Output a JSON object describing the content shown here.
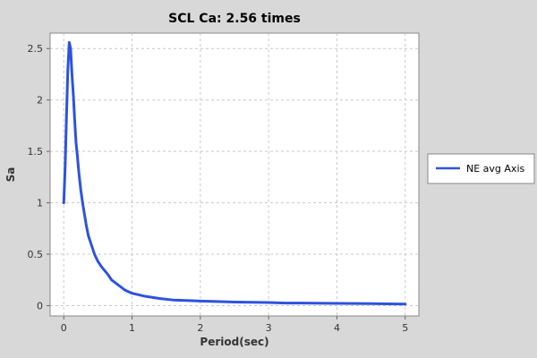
{
  "chart_data": {
    "type": "line",
    "title": "SCL Ca: 2.56 times",
    "xlabel": "Period(sec)",
    "ylabel": "Sa",
    "xlim": [
      -0.2,
      5.2
    ],
    "ylim": [
      -0.1,
      2.65
    ],
    "x_ticks": [
      0,
      1,
      2,
      3,
      4,
      5
    ],
    "y_ticks": [
      0,
      0.5,
      1,
      1.5,
      2,
      2.5
    ],
    "x_tick_labels": [
      "0",
      "1",
      "2",
      "3",
      "4",
      "5"
    ],
    "y_tick_labels": [
      "0",
      "0.5",
      "1",
      "1.5",
      "2",
      "2.5"
    ],
    "grid": true,
    "legend_position": "right",
    "series": [
      {
        "name": "NE avg Axis",
        "color": "#2d52e0",
        "x": [
          0.0,
          0.02,
          0.04,
          0.06,
          0.08,
          0.1,
          0.12,
          0.14,
          0.16,
          0.18,
          0.2,
          0.22,
          0.25,
          0.28,
          0.3,
          0.33,
          0.36,
          0.4,
          0.45,
          0.5,
          0.55,
          0.6,
          0.65,
          0.7,
          0.8,
          0.9,
          1.0,
          1.2,
          1.4,
          1.6,
          1.8,
          2.0,
          2.5,
          3.0,
          3.25,
          3.5,
          4.0,
          4.5,
          5.0
        ],
        "y": [
          1.0,
          1.35,
          1.85,
          2.3,
          2.56,
          2.5,
          2.25,
          2.05,
          1.8,
          1.58,
          1.45,
          1.3,
          1.12,
          0.98,
          0.9,
          0.78,
          0.68,
          0.6,
          0.5,
          0.43,
          0.38,
          0.34,
          0.3,
          0.25,
          0.2,
          0.15,
          0.12,
          0.09,
          0.07,
          0.055,
          0.05,
          0.045,
          0.035,
          0.03,
          0.025,
          0.025,
          0.022,
          0.02,
          0.015
        ]
      }
    ]
  }
}
